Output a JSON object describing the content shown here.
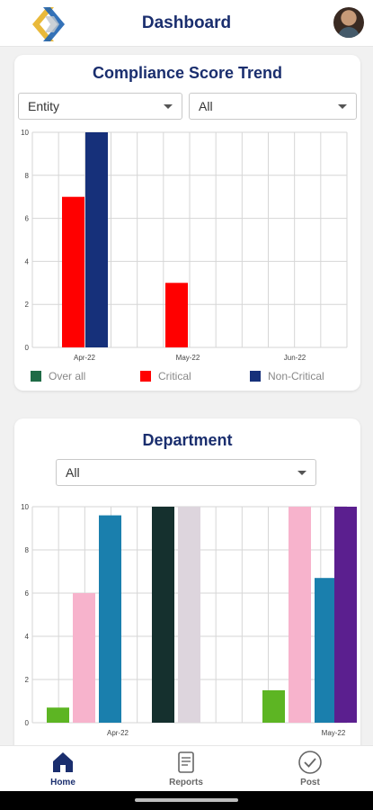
{
  "header": {
    "title": "Dashboard"
  },
  "compliance": {
    "title": "Compliance Score Trend",
    "entity_select": "Entity",
    "all_select": "All",
    "legend": [
      {
        "label": "Over all",
        "color": "#1f6b46"
      },
      {
        "label": "Critical",
        "color": "#ff0000"
      },
      {
        "label": "Non-Critical",
        "color": "#16307a"
      }
    ]
  },
  "department": {
    "title": "Department",
    "select": "All"
  },
  "nav": {
    "home": "Home",
    "reports": "Reports",
    "post": "Post"
  },
  "chart_data": [
    {
      "type": "bar",
      "categories": [
        "Apr-22",
        "May-22",
        "Jun-22"
      ],
      "ylim": [
        0,
        10
      ],
      "yticks": [
        0,
        2,
        4,
        6,
        8,
        10
      ],
      "series": [
        {
          "name": "Over all",
          "color": "#1f6b46",
          "values": [
            0,
            0,
            0
          ]
        },
        {
          "name": "Critical",
          "color": "#ff0000",
          "values": [
            7,
            3,
            0
          ]
        },
        {
          "name": "Non-Critical",
          "color": "#16307a",
          "values": [
            10,
            0,
            0
          ]
        }
      ]
    },
    {
      "type": "bar",
      "categories": [
        "Apr-22",
        "May-22"
      ],
      "ylim": [
        0,
        10
      ],
      "yticks": [
        0,
        2,
        4,
        6,
        8,
        10
      ],
      "series": [
        {
          "color": "#5db523",
          "values": [
            0.7,
            1.5
          ]
        },
        {
          "color": "#f7b3cc",
          "values": [
            6,
            10
          ]
        },
        {
          "color": "#1a7fad",
          "values": [
            9.6,
            6.7
          ]
        },
        {
          "color": "#15302e",
          "values": [
            10,
            0
          ]
        },
        {
          "color": "#ddd5dd",
          "values": [
            10,
            0
          ]
        },
        {
          "color": "#5b1f8f",
          "values": [
            0,
            10
          ]
        }
      ]
    }
  ]
}
